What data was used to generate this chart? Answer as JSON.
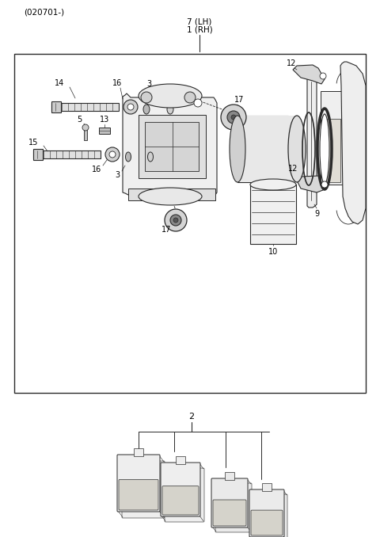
{
  "title": "(020701-)",
  "bg_color": "#ffffff",
  "line_color": "#2a2a2a",
  "fig_width": 4.8,
  "fig_height": 6.78,
  "dpi": 100
}
